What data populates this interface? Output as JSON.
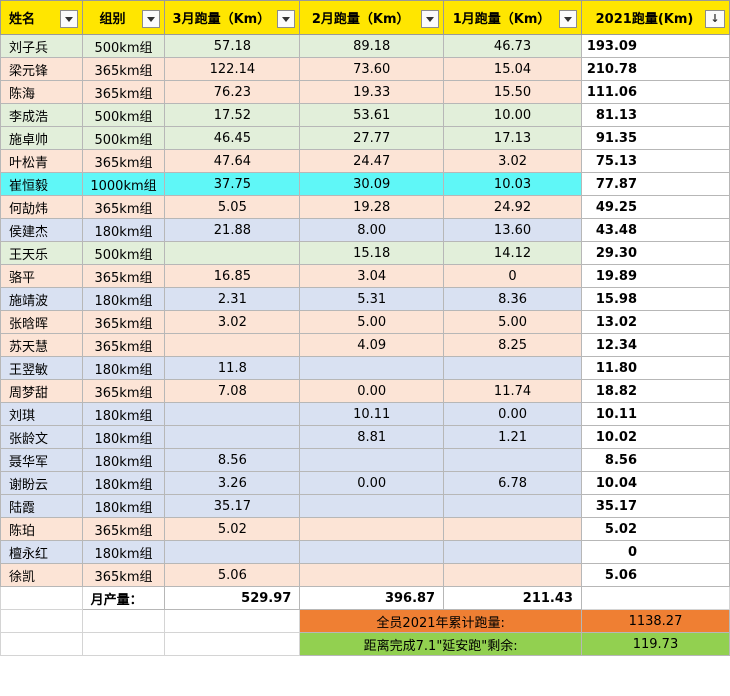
{
  "headers": {
    "name": "姓名",
    "group": "组别",
    "march": "3月跑量（Km）",
    "feb": "2月跑量（Km）",
    "jan": "1月跑量（Km）",
    "total": "2021跑量(Km)"
  },
  "sort_icon": "↓",
  "rows": [
    {
      "name": "刘子兵",
      "group": "500km组",
      "march": "57.18",
      "feb": "89.18",
      "jan": "46.73",
      "total": "193.09",
      "color_group": "500"
    },
    {
      "name": "梁元锋",
      "group": "365km组",
      "march": "122.14",
      "feb": "73.60",
      "jan": "15.04",
      "total": "210.78",
      "color_group": "365"
    },
    {
      "name": "陈海",
      "group": "365km组",
      "march": "76.23",
      "feb": "19.33",
      "jan": "15.50",
      "total": "111.06",
      "color_group": "365"
    },
    {
      "name": "李成浩",
      "group": "500km组",
      "march": "17.52",
      "feb": "53.61",
      "jan": "10.00",
      "total": "81.13",
      "color_group": "500"
    },
    {
      "name": "施卓帅",
      "group": "500km组",
      "march": "46.45",
      "feb": "27.77",
      "jan": "17.13",
      "total": "91.35",
      "color_group": "500"
    },
    {
      "name": "叶松青",
      "group": "365km组",
      "march": "47.64",
      "feb": "24.47",
      "jan": "3.02",
      "total": "75.13",
      "color_group": "365"
    },
    {
      "name": "崔恒毅",
      "group": "1000km组",
      "march": "37.75",
      "feb": "30.09",
      "jan": "10.03",
      "total": "77.87",
      "color_group": "1000"
    },
    {
      "name": "何劼炜",
      "group": "365km组",
      "march": "5.05",
      "feb": "19.28",
      "jan": "24.92",
      "total": "49.25",
      "color_group": "365"
    },
    {
      "name": "侯建杰",
      "group": "180km组",
      "march": "21.88",
      "feb": "8.00",
      "jan": "13.60",
      "total": "43.48",
      "color_group": "180"
    },
    {
      "name": "王天乐",
      "group": "500km组",
      "march": "",
      "feb": "15.18",
      "jan": "14.12",
      "total": "29.30",
      "color_group": "500"
    },
    {
      "name": "骆平",
      "group": "365km组",
      "march": "16.85",
      "feb": "3.04",
      "jan": "0",
      "total": "19.89",
      "color_group": "365"
    },
    {
      "name": "施靖波",
      "group": "180km组",
      "march": "2.31",
      "feb": "5.31",
      "jan": "8.36",
      "total": "15.98",
      "color_group": "180"
    },
    {
      "name": "张晗晖",
      "group": "365km组",
      "march": "3.02",
      "feb": "5.00",
      "jan": "5.00",
      "total": "13.02",
      "color_group": "365"
    },
    {
      "name": "苏天慧",
      "group": "365km组",
      "march": "",
      "feb": "4.09",
      "jan": "8.25",
      "total": "12.34",
      "color_group": "365"
    },
    {
      "name": "王翌敏",
      "group": "180km组",
      "march": "11.8",
      "feb": "",
      "jan": "",
      "total": "11.80",
      "color_group": "180"
    },
    {
      "name": "周梦甜",
      "group": "365km组",
      "march": "7.08",
      "feb": "0.00",
      "jan": "11.74",
      "total": "18.82",
      "color_group": "365"
    },
    {
      "name": "刘琪",
      "group": "180km组",
      "march": "",
      "feb": "10.11",
      "jan": "0.00",
      "total": "10.11",
      "color_group": "180"
    },
    {
      "name": "张龄文",
      "group": "180km组",
      "march": "",
      "feb": "8.81",
      "jan": "1.21",
      "total": "10.02",
      "color_group": "180"
    },
    {
      "name": "聂华军",
      "group": "180km组",
      "march": "8.56",
      "feb": "",
      "jan": "",
      "total": "8.56",
      "color_group": "180"
    },
    {
      "name": "谢盼云",
      "group": "180km组",
      "march": "3.26",
      "feb": "0.00",
      "jan": "6.78",
      "total": "10.04",
      "color_group": "180"
    },
    {
      "name": "陆霞",
      "group": "180km组",
      "march": "35.17",
      "feb": "",
      "jan": "",
      "total": "35.17",
      "color_group": "180"
    },
    {
      "name": "陈珀",
      "group": "365km组",
      "march": "5.02",
      "feb": "",
      "jan": "",
      "total": "5.02",
      "color_group": "365"
    },
    {
      "name": "檀永红",
      "group": "180km组",
      "march": "",
      "feb": "",
      "jan": "",
      "total": "0",
      "color_group": "180"
    },
    {
      "name": "徐凯",
      "group": "365km组",
      "march": "5.06",
      "feb": "",
      "jan": "",
      "total": "5.06",
      "color_group": "365"
    }
  ],
  "monthly": {
    "label": "月产量：",
    "march": "529.97",
    "feb": "396.87",
    "jan": "211.43"
  },
  "summary": {
    "total_label": "全员2021年累计跑量:",
    "total_value": "1138.27",
    "remain_label": "距离完成7.1\"延安跑\"剩余:",
    "remain_value": "119.73"
  },
  "colors": {
    "header": "#ffe600",
    "g500": "#e2efda",
    "g365": "#fce4d6",
    "g180": "#d9e1f2",
    "g1000": "#5ff7f7",
    "summary_orange": "#ef7f33",
    "summary_green": "#92d050"
  }
}
